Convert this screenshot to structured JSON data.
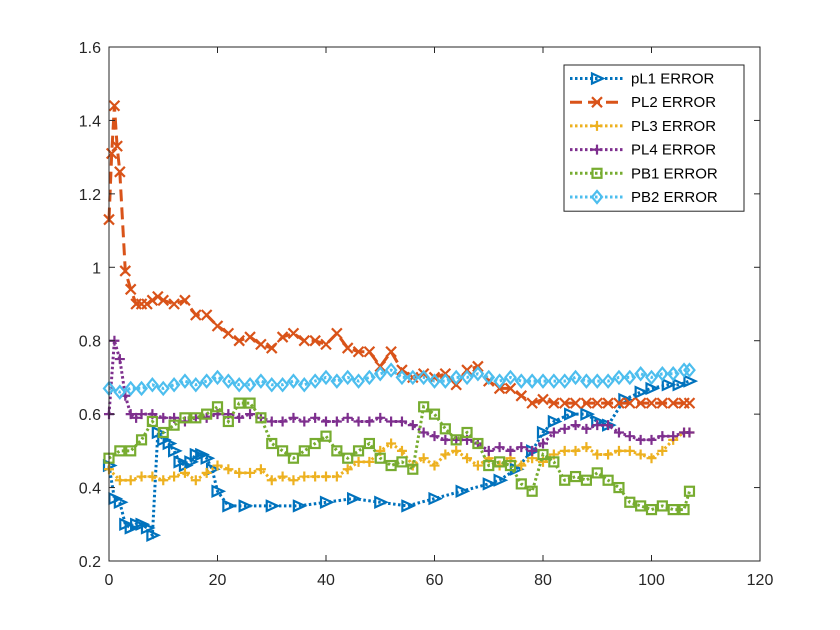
{
  "chart_data": {
    "type": "line",
    "xlim": [
      0,
      120
    ],
    "ylim": [
      0.2,
      1.6
    ],
    "x_ticks": [
      "0",
      "20",
      "40",
      "60",
      "80",
      "100",
      "120"
    ],
    "y_ticks": [
      "0.2",
      "0.4",
      "0.6",
      "0.8",
      "1",
      "1.2",
      "1.4",
      "1.6"
    ],
    "grid": false,
    "legend_position": "top-right",
    "series": [
      {
        "name": "pL1 ERROR",
        "color": "#0072BD",
        "line_style": "dotted",
        "marker": "triangle-right",
        "x": [
          0,
          1,
          2,
          3,
          4,
          5,
          6,
          7,
          8,
          9,
          10,
          11,
          12,
          13,
          14,
          15,
          16,
          17,
          18,
          19,
          20,
          22,
          25,
          30,
          35,
          40,
          45,
          50,
          55,
          60,
          65,
          70,
          72,
          75,
          78,
          80,
          82,
          85,
          88,
          90,
          92,
          95,
          98,
          100,
          103,
          105,
          107
        ],
        "y": [
          0.46,
          0.37,
          0.36,
          0.3,
          0.29,
          0.3,
          0.3,
          0.29,
          0.27,
          0.55,
          0.53,
          0.52,
          0.5,
          0.47,
          0.46,
          0.47,
          0.49,
          0.49,
          0.48,
          0.45,
          0.39,
          0.35,
          0.35,
          0.35,
          0.35,
          0.36,
          0.37,
          0.36,
          0.35,
          0.37,
          0.39,
          0.41,
          0.42,
          0.45,
          0.5,
          0.55,
          0.58,
          0.6,
          0.6,
          0.58,
          0.57,
          0.64,
          0.66,
          0.67,
          0.68,
          0.68,
          0.69
        ]
      },
      {
        "name": "PL2 ERROR",
        "color": "#D95319",
        "line_style": "dashed",
        "marker": "x",
        "x": [
          0,
          0.5,
          1,
          1.5,
          2,
          3,
          4,
          5,
          6,
          7,
          8,
          9,
          10,
          12,
          14,
          16,
          18,
          20,
          22,
          24,
          26,
          28,
          30,
          32,
          34,
          36,
          38,
          40,
          42,
          44,
          46,
          48,
          50,
          52,
          54,
          56,
          58,
          60,
          62,
          64,
          66,
          68,
          70,
          72,
          74,
          76,
          78,
          80,
          82,
          84,
          86,
          88,
          90,
          92,
          94,
          96,
          98,
          100,
          102,
          104,
          106,
          107
        ],
        "y": [
          1.13,
          1.31,
          1.44,
          1.33,
          1.26,
          0.99,
          0.94,
          0.9,
          0.9,
          0.9,
          0.91,
          0.92,
          0.91,
          0.9,
          0.91,
          0.87,
          0.87,
          0.84,
          0.82,
          0.8,
          0.81,
          0.79,
          0.78,
          0.81,
          0.82,
          0.8,
          0.8,
          0.79,
          0.82,
          0.78,
          0.77,
          0.77,
          0.73,
          0.77,
          0.72,
          0.7,
          0.71,
          0.7,
          0.71,
          0.68,
          0.72,
          0.73,
          0.69,
          0.67,
          0.67,
          0.65,
          0.63,
          0.64,
          0.63,
          0.63,
          0.63,
          0.63,
          0.63,
          0.63,
          0.63,
          0.63,
          0.63,
          0.63,
          0.63,
          0.63,
          0.63,
          0.63
        ]
      },
      {
        "name": "PL3 ERROR",
        "color": "#EDB120",
        "line_style": "dotted",
        "marker": "plus",
        "x": [
          0,
          2,
          4,
          6,
          8,
          10,
          12,
          14,
          16,
          18,
          20,
          22,
          24,
          26,
          28,
          30,
          32,
          34,
          36,
          38,
          40,
          42,
          44,
          46,
          48,
          50,
          52,
          54,
          56,
          58,
          60,
          62,
          64,
          66,
          68,
          70,
          72,
          74,
          76,
          78,
          80,
          82,
          84,
          86,
          88,
          90,
          92,
          94,
          96,
          98,
          100,
          102,
          104,
          106,
          107
        ],
        "y": [
          0.45,
          0.42,
          0.42,
          0.43,
          0.43,
          0.42,
          0.43,
          0.44,
          0.42,
          0.44,
          0.46,
          0.45,
          0.44,
          0.44,
          0.45,
          0.42,
          0.43,
          0.42,
          0.43,
          0.43,
          0.43,
          0.43,
          0.45,
          0.47,
          0.47,
          0.5,
          0.52,
          0.5,
          0.46,
          0.48,
          0.46,
          0.49,
          0.5,
          0.48,
          0.46,
          0.48,
          0.46,
          0.48,
          0.46,
          0.48,
          0.47,
          0.49,
          0.5,
          0.5,
          0.51,
          0.49,
          0.49,
          0.5,
          0.5,
          0.49,
          0.48,
          0.5,
          0.53,
          0.55,
          0.55
        ]
      },
      {
        "name": "PL4 ERROR",
        "color": "#7E2F8E",
        "line_style": "dotted",
        "marker": "plus",
        "x": [
          0,
          1,
          2,
          3,
          4,
          5,
          6,
          8,
          10,
          12,
          14,
          16,
          18,
          20,
          22,
          24,
          26,
          28,
          30,
          32,
          34,
          36,
          38,
          40,
          42,
          44,
          46,
          48,
          50,
          52,
          54,
          56,
          58,
          60,
          62,
          64,
          66,
          68,
          70,
          72,
          74,
          76,
          78,
          80,
          82,
          84,
          86,
          88,
          90,
          92,
          94,
          96,
          98,
          100,
          102,
          104,
          106,
          107
        ],
        "y": [
          0.6,
          0.8,
          0.75,
          0.65,
          0.6,
          0.59,
          0.6,
          0.6,
          0.59,
          0.59,
          0.58,
          0.59,
          0.59,
          0.6,
          0.6,
          0.59,
          0.6,
          0.59,
          0.58,
          0.58,
          0.59,
          0.58,
          0.59,
          0.58,
          0.58,
          0.59,
          0.58,
          0.58,
          0.59,
          0.58,
          0.58,
          0.57,
          0.55,
          0.54,
          0.53,
          0.53,
          0.53,
          0.52,
          0.5,
          0.51,
          0.5,
          0.51,
          0.5,
          0.52,
          0.55,
          0.56,
          0.57,
          0.56,
          0.57,
          0.57,
          0.55,
          0.54,
          0.53,
          0.53,
          0.54,
          0.54,
          0.55,
          0.55
        ]
      },
      {
        "name": "PB1 ERROR",
        "color": "#77AC30",
        "line_style": "dotted",
        "marker": "square",
        "x": [
          0,
          2,
          4,
          6,
          8,
          10,
          12,
          14,
          16,
          18,
          20,
          22,
          24,
          26,
          28,
          30,
          32,
          34,
          36,
          38,
          40,
          42,
          44,
          46,
          48,
          50,
          52,
          54,
          56,
          58,
          60,
          62,
          64,
          66,
          68,
          70,
          72,
          74,
          76,
          78,
          80,
          82,
          84,
          86,
          88,
          90,
          92,
          94,
          96,
          98,
          100,
          102,
          104,
          106,
          107
        ],
        "y": [
          0.48,
          0.5,
          0.5,
          0.53,
          0.58,
          0.55,
          0.57,
          0.59,
          0.59,
          0.6,
          0.62,
          0.58,
          0.63,
          0.63,
          0.59,
          0.52,
          0.5,
          0.48,
          0.5,
          0.52,
          0.54,
          0.5,
          0.48,
          0.5,
          0.52,
          0.48,
          0.46,
          0.47,
          0.45,
          0.62,
          0.6,
          0.56,
          0.53,
          0.55,
          0.52,
          0.46,
          0.47,
          0.46,
          0.41,
          0.39,
          0.49,
          0.47,
          0.42,
          0.43,
          0.42,
          0.44,
          0.42,
          0.4,
          0.36,
          0.35,
          0.34,
          0.35,
          0.34,
          0.34,
          0.39
        ]
      },
      {
        "name": "PB2 ERROR",
        "color": "#4DBEEE",
        "line_style": "dotted",
        "marker": "diamond",
        "x": [
          0,
          2,
          4,
          6,
          8,
          10,
          12,
          14,
          16,
          18,
          20,
          22,
          24,
          26,
          28,
          30,
          32,
          34,
          36,
          38,
          40,
          42,
          44,
          46,
          48,
          50,
          52,
          54,
          56,
          58,
          60,
          62,
          64,
          66,
          68,
          70,
          72,
          74,
          76,
          78,
          80,
          82,
          84,
          86,
          88,
          90,
          92,
          94,
          96,
          98,
          100,
          102,
          104,
          106,
          107
        ],
        "y": [
          0.67,
          0.66,
          0.67,
          0.67,
          0.68,
          0.67,
          0.68,
          0.69,
          0.68,
          0.69,
          0.7,
          0.69,
          0.68,
          0.68,
          0.69,
          0.68,
          0.68,
          0.69,
          0.68,
          0.69,
          0.7,
          0.69,
          0.7,
          0.69,
          0.7,
          0.71,
          0.72,
          0.7,
          0.7,
          0.7,
          0.69,
          0.69,
          0.7,
          0.7,
          0.71,
          0.7,
          0.69,
          0.7,
          0.69,
          0.69,
          0.69,
          0.69,
          0.69,
          0.7,
          0.69,
          0.69,
          0.69,
          0.7,
          0.7,
          0.71,
          0.7,
          0.71,
          0.71,
          0.72,
          0.72
        ]
      }
    ]
  }
}
